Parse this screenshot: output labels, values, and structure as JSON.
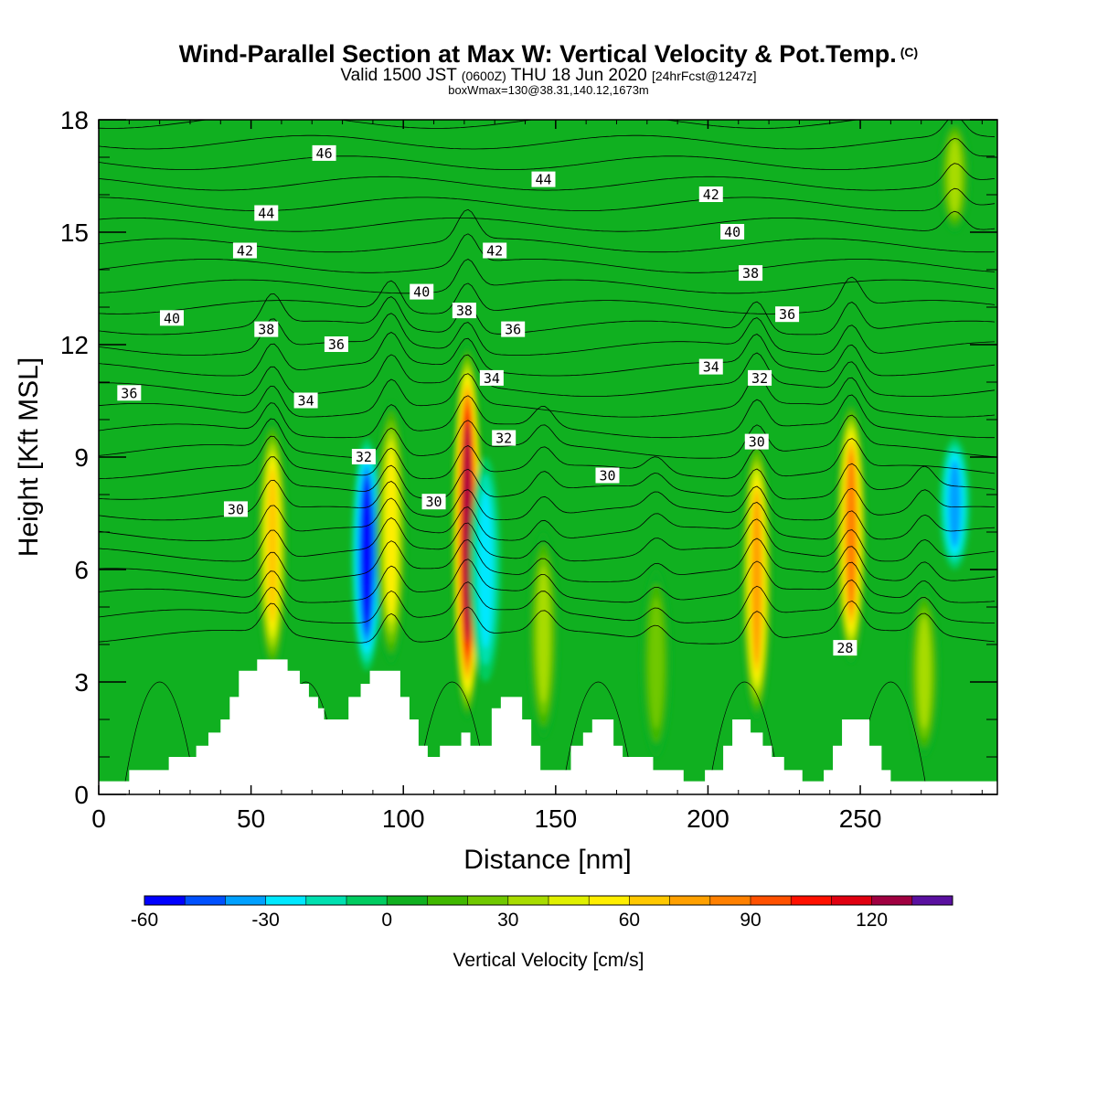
{
  "title": {
    "main": "Wind-Parallel Section at Max W: Vertical Velocity & Pot.Temp.",
    "copyright": "(C)",
    "valid_prefix": "Valid 1500 JST",
    "valid_utc": "(0600Z)",
    "valid_date": "THU 18 Jun 2020",
    "forecast": "[24hrFcst@1247z]",
    "box_info": "boxWmax=130@38.31,140.12,1673m"
  },
  "chart_data": {
    "type": "heatmap",
    "xlabel": "Distance [nm]",
    "ylabel": "Height [Kft MSL]",
    "xlim": [
      0,
      295
    ],
    "ylim": [
      0,
      18
    ],
    "x_ticks": [
      0,
      50,
      100,
      150,
      200,
      250
    ],
    "y_ticks": [
      0,
      3,
      6,
      9,
      12,
      15,
      18
    ],
    "colorbar": {
      "label": "Vertical Velocity [cm/s]",
      "min": -60,
      "max": 140,
      "step": 10,
      "tick_values": [
        -60,
        -30,
        0,
        30,
        60,
        90,
        120
      ],
      "colors": [
        "#0000ff",
        "#0050ff",
        "#00a0ff",
        "#00e8ff",
        "#00e0b0",
        "#00cc60",
        "#10b020",
        "#40b800",
        "#70c800",
        "#a8dc00",
        "#e0f000",
        "#ffee00",
        "#ffc800",
        "#ffa000",
        "#ff8000",
        "#ff5000",
        "#ff1000",
        "#e00010",
        "#a00040",
        "#5a10a0"
      ]
    },
    "background_value": 0,
    "vertical_velocity_cells": [
      {
        "x": 57,
        "z_min": 3.3,
        "z_max": 10,
        "peak": 70
      },
      {
        "x": 88,
        "z_min": 3.3,
        "z_max": 9.5,
        "peak": -60
      },
      {
        "x": 96,
        "z_min": 3.5,
        "z_max": 10.5,
        "peak": 60
      },
      {
        "x": 121,
        "z_min": 2.0,
        "z_max": 12,
        "peak": 130
      },
      {
        "x": 127,
        "z_min": 3.0,
        "z_max": 9,
        "peak": -30
      },
      {
        "x": 146,
        "z_min": 1.5,
        "z_max": 7,
        "peak": 40
      },
      {
        "x": 183,
        "z_min": 1.0,
        "z_max": 6,
        "peak": 30
      },
      {
        "x": 216,
        "z_min": 2.0,
        "z_max": 9.5,
        "peak": 80
      },
      {
        "x": 247,
        "z_min": 3.5,
        "z_max": 10.5,
        "peak": 90
      },
      {
        "x": 271,
        "z_min": 1.0,
        "z_max": 5.5,
        "peak": 40
      },
      {
        "x": 281,
        "z_min": 6.0,
        "z_max": 9.5,
        "peak": -40
      },
      {
        "x": 281,
        "z_min": 15,
        "z_max": 18,
        "peak": 40
      }
    ],
    "terrain": [
      {
        "x": 0,
        "z": 0.35
      },
      {
        "x": 10,
        "z": 0.35
      },
      {
        "x": 10,
        "z": 0.65
      },
      {
        "x": 23,
        "z": 0.65
      },
      {
        "x": 23,
        "z": 1.0
      },
      {
        "x": 32,
        "z": 1.0
      },
      {
        "x": 32,
        "z": 1.3
      },
      {
        "x": 36,
        "z": 1.3
      },
      {
        "x": 36,
        "z": 1.65
      },
      {
        "x": 40,
        "z": 1.65
      },
      {
        "x": 40,
        "z": 2.0
      },
      {
        "x": 43,
        "z": 2.0
      },
      {
        "x": 43,
        "z": 2.6
      },
      {
        "x": 46,
        "z": 2.6
      },
      {
        "x": 46,
        "z": 3.3
      },
      {
        "x": 52,
        "z": 3.3
      },
      {
        "x": 52,
        "z": 3.6
      },
      {
        "x": 62,
        "z": 3.6
      },
      {
        "x": 62,
        "z": 3.3
      },
      {
        "x": 66,
        "z": 3.3
      },
      {
        "x": 66,
        "z": 2.95
      },
      {
        "x": 69,
        "z": 2.95
      },
      {
        "x": 69,
        "z": 2.6
      },
      {
        "x": 72,
        "z": 2.6
      },
      {
        "x": 72,
        "z": 2.3
      },
      {
        "x": 74,
        "z": 2.3
      },
      {
        "x": 74,
        "z": 2.0
      },
      {
        "x": 82,
        "z": 2.0
      },
      {
        "x": 82,
        "z": 2.6
      },
      {
        "x": 86,
        "z": 2.6
      },
      {
        "x": 86,
        "z": 2.95
      },
      {
        "x": 89,
        "z": 2.95
      },
      {
        "x": 89,
        "z": 3.3
      },
      {
        "x": 99,
        "z": 3.3
      },
      {
        "x": 99,
        "z": 2.6
      },
      {
        "x": 102,
        "z": 2.6
      },
      {
        "x": 102,
        "z": 2.0
      },
      {
        "x": 105,
        "z": 2.0
      },
      {
        "x": 105,
        "z": 1.3
      },
      {
        "x": 108,
        "z": 1.3
      },
      {
        "x": 108,
        "z": 1.0
      },
      {
        "x": 112,
        "z": 1.0
      },
      {
        "x": 112,
        "z": 1.3
      },
      {
        "x": 119,
        "z": 1.3
      },
      {
        "x": 119,
        "z": 1.65
      },
      {
        "x": 122,
        "z": 1.65
      },
      {
        "x": 122,
        "z": 1.3
      },
      {
        "x": 129,
        "z": 1.3
      },
      {
        "x": 129,
        "z": 2.3
      },
      {
        "x": 132,
        "z": 2.3
      },
      {
        "x": 132,
        "z": 2.6
      },
      {
        "x": 139,
        "z": 2.6
      },
      {
        "x": 139,
        "z": 2.0
      },
      {
        "x": 142,
        "z": 2.0
      },
      {
        "x": 142,
        "z": 1.3
      },
      {
        "x": 145,
        "z": 1.3
      },
      {
        "x": 145,
        "z": 0.65
      },
      {
        "x": 155,
        "z": 0.65
      },
      {
        "x": 155,
        "z": 1.3
      },
      {
        "x": 159,
        "z": 1.3
      },
      {
        "x": 159,
        "z": 1.65
      },
      {
        "x": 162,
        "z": 1.65
      },
      {
        "x": 162,
        "z": 2.0
      },
      {
        "x": 169,
        "z": 2.0
      },
      {
        "x": 169,
        "z": 1.3
      },
      {
        "x": 172,
        "z": 1.3
      },
      {
        "x": 172,
        "z": 1.0
      },
      {
        "x": 182,
        "z": 1.0
      },
      {
        "x": 182,
        "z": 0.65
      },
      {
        "x": 192,
        "z": 0.65
      },
      {
        "x": 192,
        "z": 0.35
      },
      {
        "x": 199,
        "z": 0.35
      },
      {
        "x": 199,
        "z": 0.65
      },
      {
        "x": 205,
        "z": 0.65
      },
      {
        "x": 205,
        "z": 1.3
      },
      {
        "x": 208,
        "z": 1.3
      },
      {
        "x": 208,
        "z": 2.0
      },
      {
        "x": 214,
        "z": 2.0
      },
      {
        "x": 214,
        "z": 1.65
      },
      {
        "x": 218,
        "z": 1.65
      },
      {
        "x": 218,
        "z": 1.3
      },
      {
        "x": 221,
        "z": 1.3
      },
      {
        "x": 221,
        "z": 1.0
      },
      {
        "x": 225,
        "z": 1.0
      },
      {
        "x": 225,
        "z": 0.65
      },
      {
        "x": 231,
        "z": 0.65
      },
      {
        "x": 231,
        "z": 0.35
      },
      {
        "x": 238,
        "z": 0.35
      },
      {
        "x": 238,
        "z": 0.65
      },
      {
        "x": 241,
        "z": 0.65
      },
      {
        "x": 241,
        "z": 1.3
      },
      {
        "x": 244,
        "z": 1.3
      },
      {
        "x": 244,
        "z": 2.0
      },
      {
        "x": 253,
        "z": 2.0
      },
      {
        "x": 253,
        "z": 1.3
      },
      {
        "x": 257,
        "z": 1.3
      },
      {
        "x": 257,
        "z": 0.65
      },
      {
        "x": 260,
        "z": 0.65
      },
      {
        "x": 260,
        "z": 0.35
      },
      {
        "x": 295,
        "z": 0.35
      }
    ],
    "isentrope_labels": [
      {
        "text": "46",
        "x": 74,
        "z": 17.1
      },
      {
        "text": "44",
        "x": 55,
        "z": 15.5
      },
      {
        "text": "44",
        "x": 146,
        "z": 16.4
      },
      {
        "text": "42",
        "x": 48,
        "z": 14.5
      },
      {
        "text": "42",
        "x": 130,
        "z": 14.5
      },
      {
        "text": "42",
        "x": 201,
        "z": 16.0
      },
      {
        "text": "40",
        "x": 24,
        "z": 12.7
      },
      {
        "text": "40",
        "x": 106,
        "z": 13.4
      },
      {
        "text": "40",
        "x": 208,
        "z": 15.0
      },
      {
        "text": "38",
        "x": 55,
        "z": 12.4
      },
      {
        "text": "38",
        "x": 120,
        "z": 12.9
      },
      {
        "text": "38",
        "x": 214,
        "z": 13.9
      },
      {
        "text": "36",
        "x": 10,
        "z": 10.7
      },
      {
        "text": "36",
        "x": 78,
        "z": 12.0
      },
      {
        "text": "36",
        "x": 136,
        "z": 12.4
      },
      {
        "text": "36",
        "x": 226,
        "z": 12.8
      },
      {
        "text": "34",
        "x": 68,
        "z": 10.5
      },
      {
        "text": "34",
        "x": 129,
        "z": 11.1
      },
      {
        "text": "34",
        "x": 201,
        "z": 11.4
      },
      {
        "text": "32",
        "x": 87,
        "z": 9.0
      },
      {
        "text": "32",
        "x": 133,
        "z": 9.5
      },
      {
        "text": "32",
        "x": 217,
        "z": 11.1
      },
      {
        "text": "30",
        "x": 45,
        "z": 7.6
      },
      {
        "text": "30",
        "x": 110,
        "z": 7.8
      },
      {
        "text": "30",
        "x": 167,
        "z": 8.5
      },
      {
        "text": "30",
        "x": 216,
        "z": 9.4
      },
      {
        "text": "28",
        "x": 245,
        "z": 3.9
      }
    ]
  }
}
